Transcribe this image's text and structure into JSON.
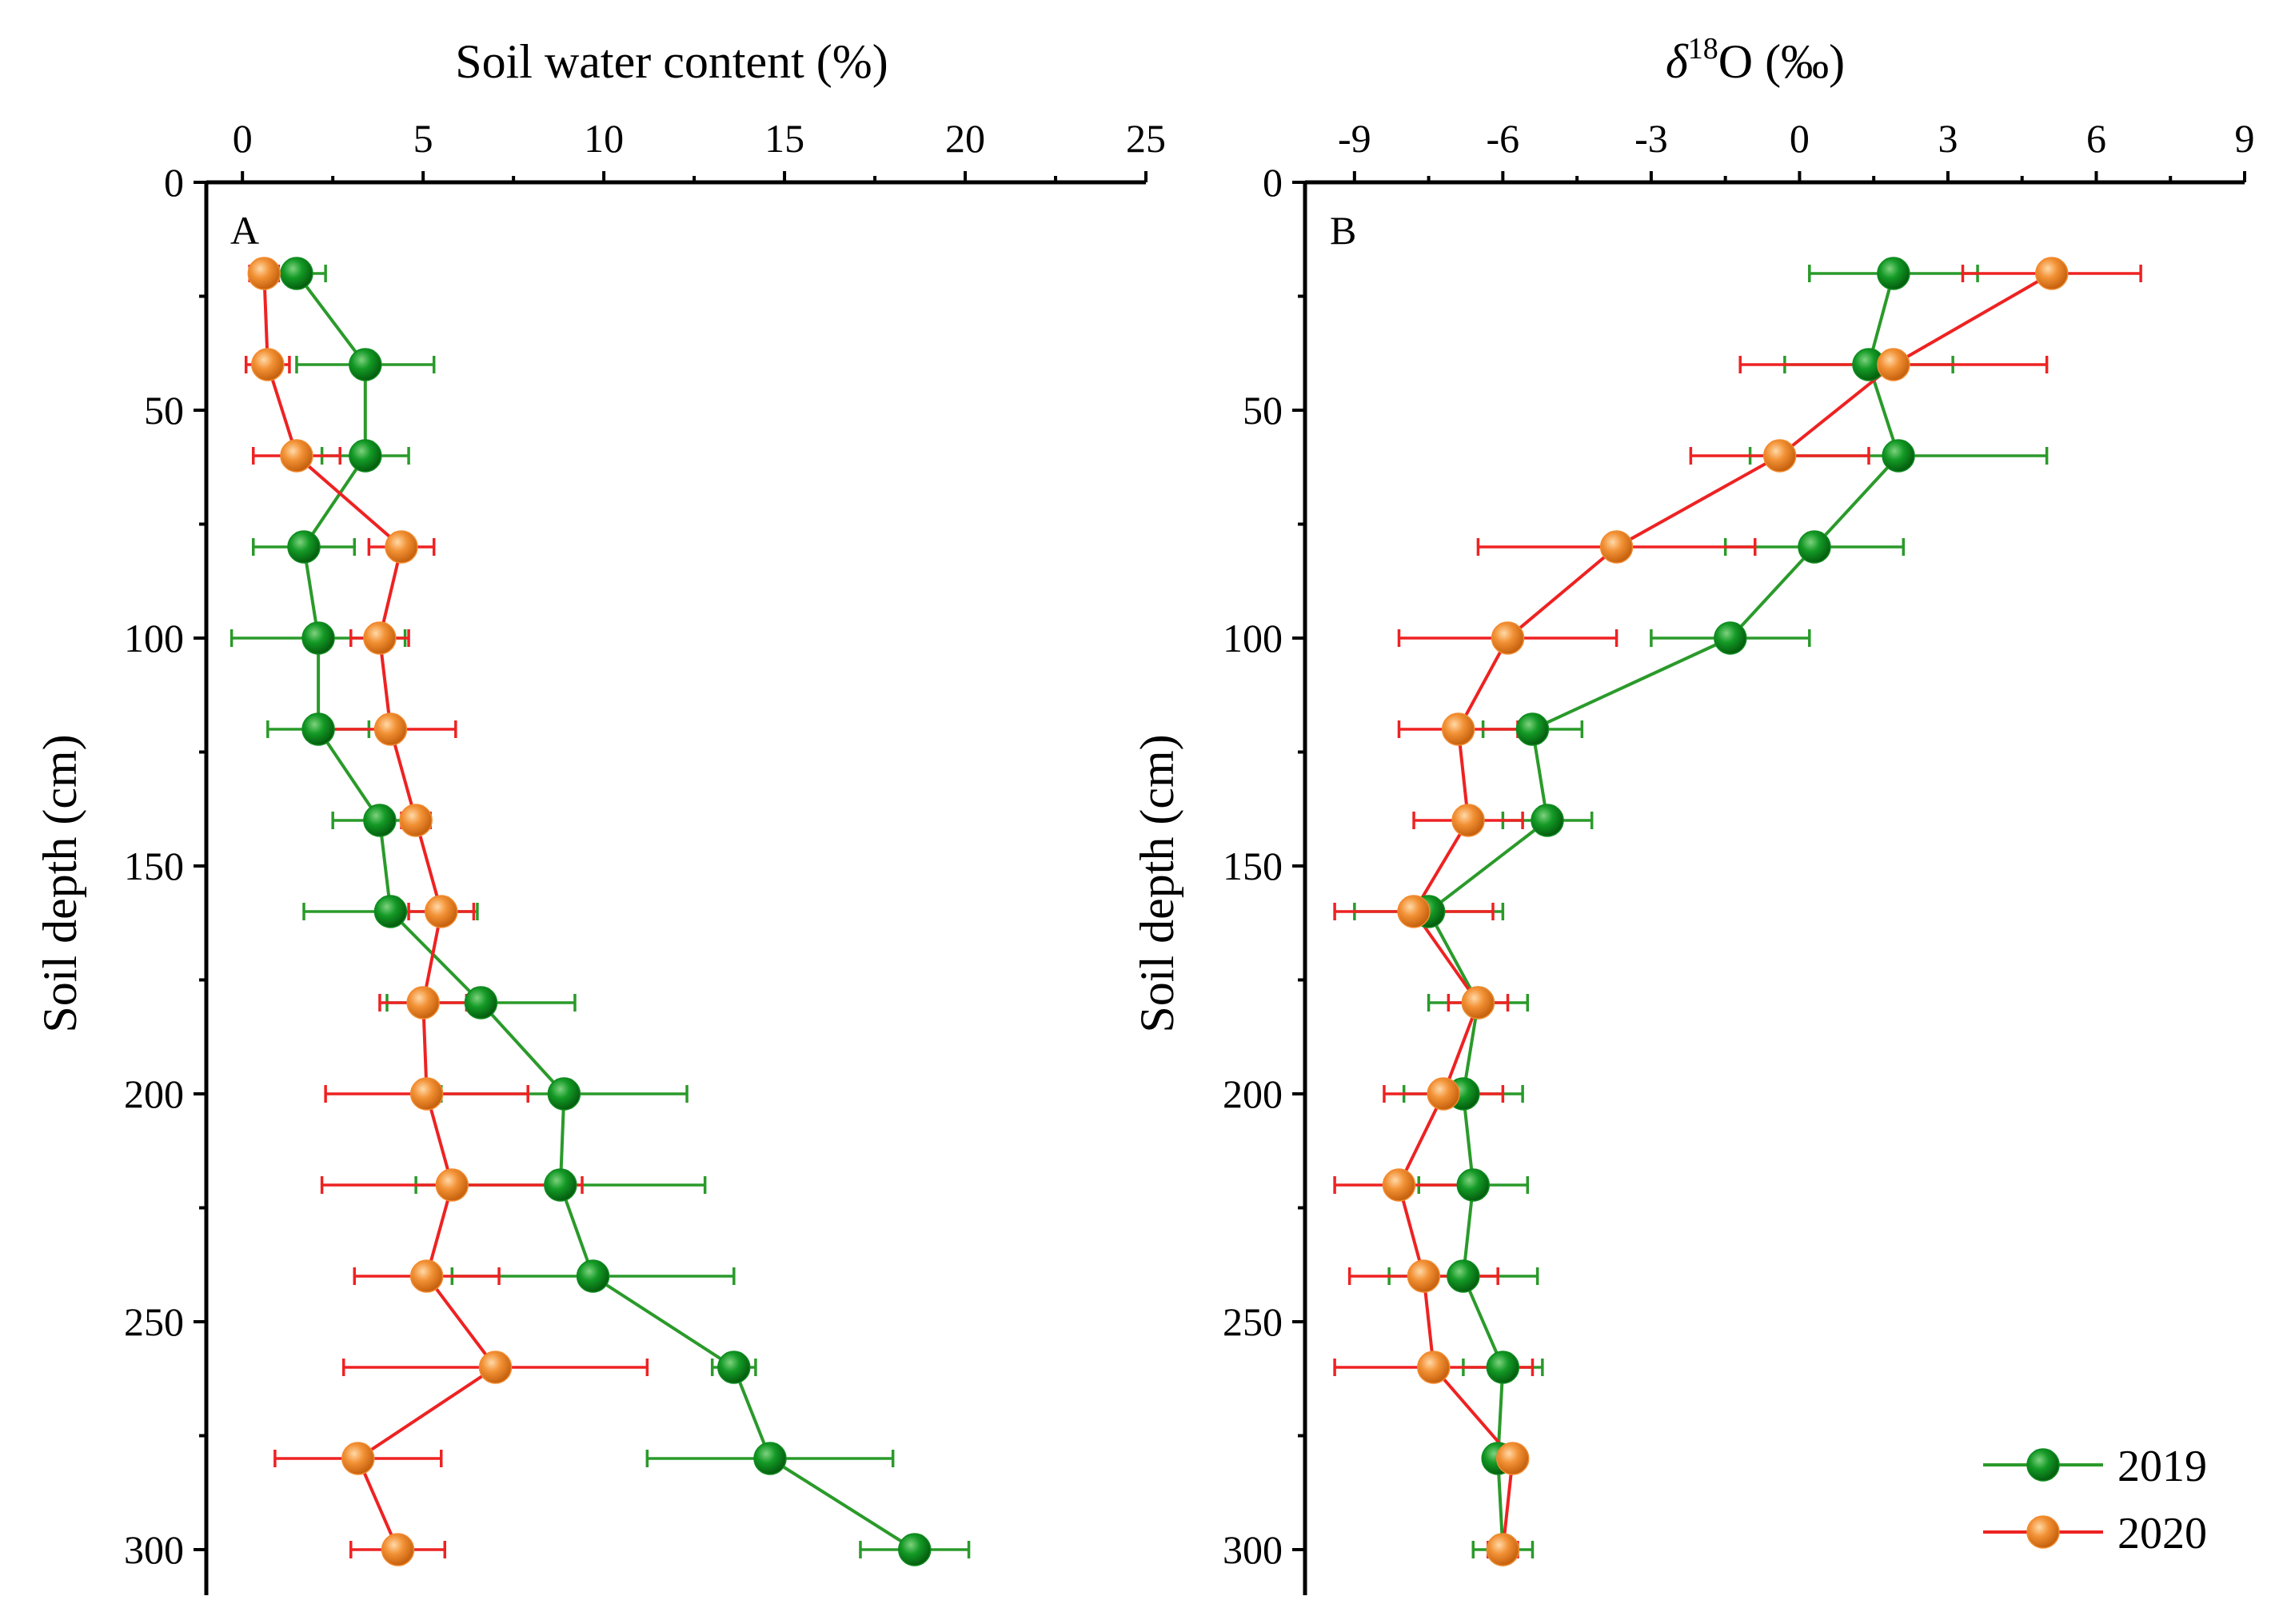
{
  "chart_data": [
    {
      "type": "line",
      "panel": "A",
      "title": "",
      "xlabel": "Soil water content (%)",
      "ylabel": "Soil depth (cm)",
      "xlim": [
        -1,
        25
      ],
      "ylim": [
        0,
        310
      ],
      "xticks": [
        0,
        5,
        10,
        15,
        20,
        25
      ],
      "yticks": [
        0,
        50,
        100,
        150,
        200,
        250,
        300
      ],
      "depths": [
        20,
        40,
        60,
        80,
        100,
        120,
        140,
        160,
        180,
        200,
        220,
        240,
        260,
        280,
        300
      ],
      "series": [
        {
          "name": "2019",
          "color": "#2a9a2a",
          "fill": "#0f8a1f",
          "values": [
            1.5,
            3.4,
            3.4,
            1.7,
            2.1,
            2.1,
            3.8,
            4.1,
            6.6,
            8.9,
            8.8,
            9.7,
            13.6,
            14.6,
            18.6
          ],
          "errors": [
            0.8,
            1.9,
            1.2,
            1.4,
            2.4,
            1.4,
            1.3,
            2.4,
            2.6,
            3.4,
            4.0,
            3.9,
            0.6,
            3.4,
            1.5
          ]
        },
        {
          "name": "2020",
          "color": "#ee2222",
          "fill": "#f28a2e",
          "values": [
            0.6,
            0.7,
            1.5,
            4.4,
            3.8,
            4.1,
            4.8,
            5.5,
            5.0,
            5.1,
            5.8,
            5.1,
            7.0,
            3.2,
            4.3
          ],
          "errors": [
            0.4,
            0.6,
            1.2,
            0.9,
            0.8,
            1.8,
            0.4,
            0.9,
            1.2,
            2.8,
            3.6,
            2.0,
            4.2,
            2.3,
            1.3
          ]
        }
      ]
    },
    {
      "type": "line",
      "panel": "B",
      "title": "",
      "xlabel": "δ18O (‰)",
      "xlabel_main": "δ",
      "xlabel_sup": "18",
      "xlabel_rest": "O (‰)",
      "ylabel": "Soil depth (cm)",
      "xlim": [
        -10,
        9
      ],
      "ylim": [
        0,
        310
      ],
      "xticks": [
        -9,
        -6,
        -3,
        0,
        3,
        6,
        9
      ],
      "yticks": [
        0,
        50,
        100,
        150,
        200,
        250,
        300
      ],
      "depths": [
        20,
        40,
        60,
        80,
        100,
        120,
        140,
        160,
        180,
        200,
        220,
        240,
        260,
        280,
        300
      ],
      "series": [
        {
          "name": "2019",
          "color": "#2a9a2a",
          "fill": "#0f8a1f",
          "values": [
            1.9,
            1.4,
            2.0,
            0.3,
            -1.4,
            -5.4,
            -5.1,
            -7.5,
            -6.5,
            -6.8,
            -6.6,
            -6.8,
            -6.0,
            -6.1,
            -6.0
          ],
          "errors": [
            1.7,
            1.7,
            3.0,
            1.8,
            1.6,
            1.0,
            0.9,
            1.5,
            1.0,
            1.2,
            1.1,
            1.5,
            0.8,
            0.2,
            0.6
          ]
        },
        {
          "name": "2020",
          "color": "#ee2222",
          "fill": "#f28a2e",
          "values": [
            5.1,
            1.9,
            -0.4,
            -3.7,
            -5.9,
            -6.9,
            -6.7,
            -7.8,
            -6.5,
            -7.2,
            -8.1,
            -7.6,
            -7.4,
            -5.8,
            -6.0
          ],
          "errors": [
            1.8,
            3.1,
            1.8,
            2.8,
            2.2,
            1.2,
            1.1,
            1.6,
            0.6,
            1.2,
            1.3,
            1.5,
            2.0,
            0.2,
            0.3
          ]
        }
      ]
    }
  ],
  "legend": {
    "position": "bottom-right",
    "items": [
      {
        "label": "2019",
        "line": "#2a9a2a",
        "fill": "#0f8a1f"
      },
      {
        "label": "2020",
        "line": "#ee2222",
        "fill": "#f28a2e"
      }
    ]
  }
}
